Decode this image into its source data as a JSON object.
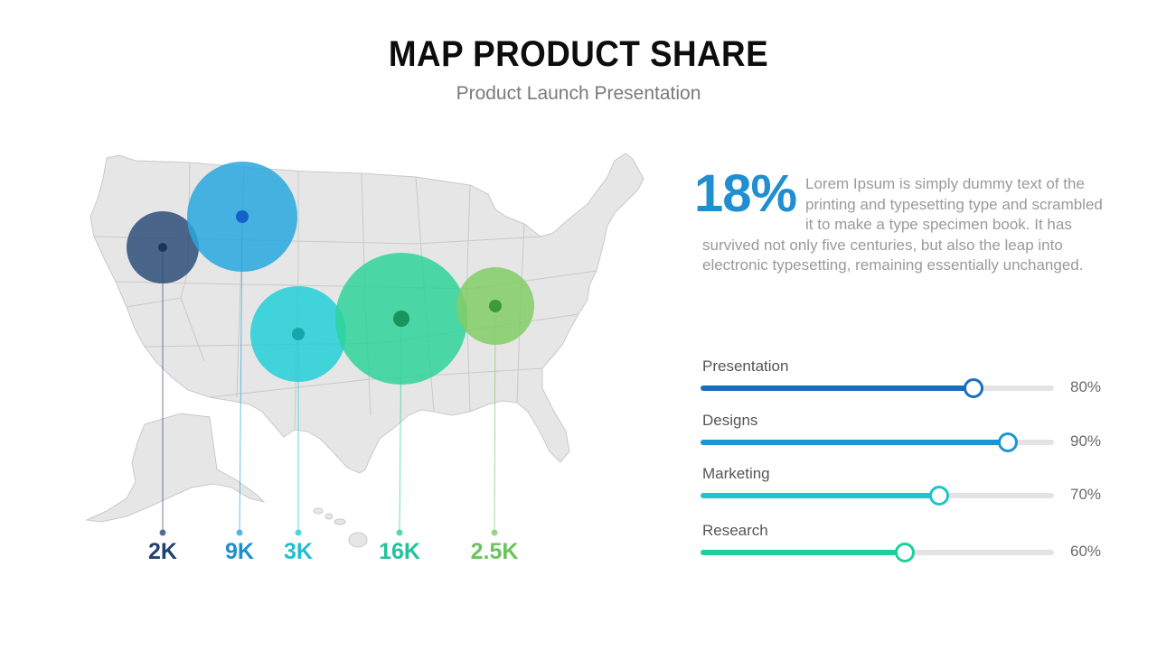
{
  "header": {
    "title": "MAP PRODUCT SHARE",
    "subtitle": "Product Launch Presentation"
  },
  "map": {
    "region": "United States",
    "markers": [
      {
        "value_label": "2K",
        "color": "#2d4d78",
        "dot_color": "#1b3558"
      },
      {
        "value_label": "9K",
        "color": "#28a7de",
        "dot_color": "#1262c8"
      },
      {
        "value_label": "3K",
        "color": "#22cfd6",
        "dot_color": "#17a6aa"
      },
      {
        "value_label": "16K",
        "color": "#2fd29a",
        "dot_color": "#17955f"
      },
      {
        "value_label": "2.5K",
        "color": "#80cc66",
        "dot_color": "#3e9a35"
      }
    ]
  },
  "stat": {
    "percent": "18%",
    "text": "Lorem Ipsum is simply dummy text of the printing and typesetting type and scrambled it to make a type specimen book. It has survived not only five centuries, but also the leap into electronic typesetting, remaining essentially unchanged."
  },
  "bars": [
    {
      "label": "Presentation",
      "value": 0.8,
      "value_label": "80%",
      "color": "#1a6ec2"
    },
    {
      "label": "Designs",
      "value": 0.9,
      "value_label": "90%",
      "color": "#1997d2"
    },
    {
      "label": "Marketing",
      "value": 0.7,
      "value_label": "70%",
      "color": "#1fc4cf"
    },
    {
      "label": "Research",
      "value": 0.6,
      "value_label": "60%",
      "color": "#1fcf9b"
    }
  ]
}
